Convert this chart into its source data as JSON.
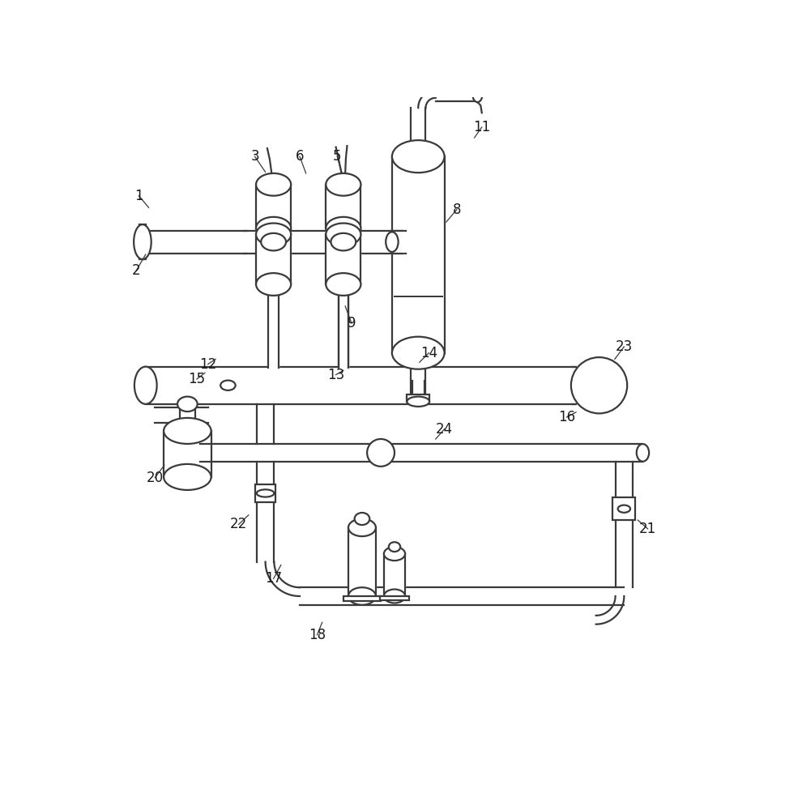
{
  "bg_color": "#ffffff",
  "line_color": "#3a3a3a",
  "lw": 1.6,
  "figsize": [
    9.69,
    10.0
  ],
  "dpi": 100
}
